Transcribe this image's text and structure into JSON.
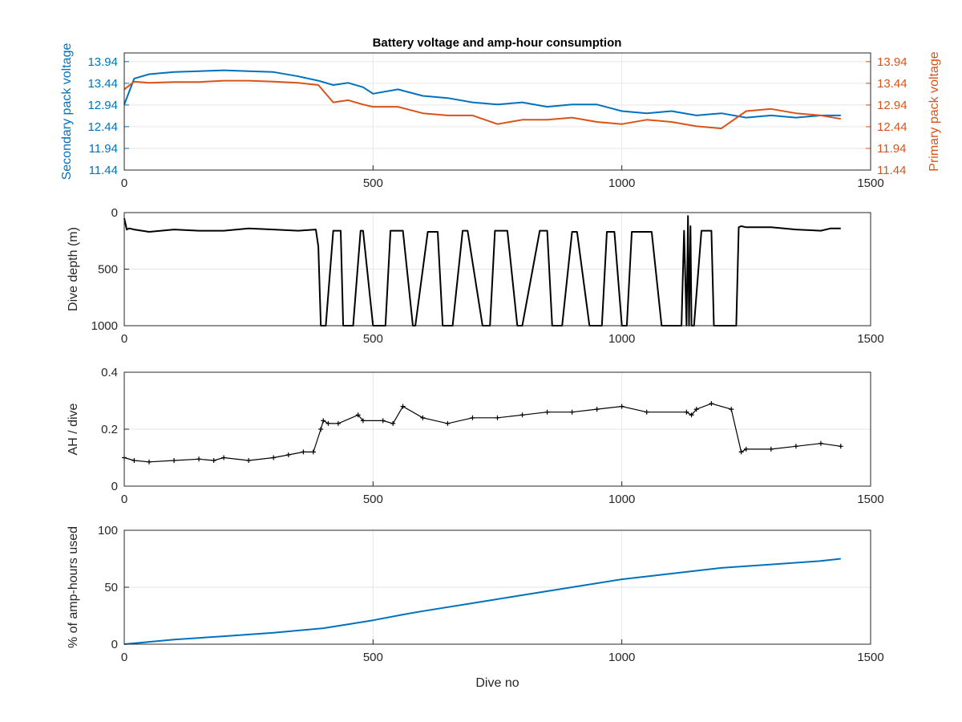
{
  "figure": {
    "title": "Battery voltage and amp-hour consumption"
  },
  "chart_data": [
    {
      "type": "line",
      "title": "Battery voltage and amp-hour consumption",
      "xlabel": "",
      "ylabel_left": "Secondary pack voltage",
      "ylabel_right": "Primary pack voltage",
      "xlim": [
        0,
        1500
      ],
      "ylim": [
        11.44,
        14.14
      ],
      "x_ticks": [
        "0",
        "500",
        "1000",
        "1500"
      ],
      "y_ticks": [
        "11.44",
        "11.94",
        "12.44",
        "12.94",
        "13.44",
        "13.94"
      ],
      "grid": true,
      "series": [
        {
          "name": "Secondary pack voltage",
          "axis": "left",
          "color": "#0072BD",
          "x": [
            0,
            20,
            50,
            100,
            150,
            200,
            250,
            300,
            350,
            390,
            420,
            450,
            480,
            500,
            550,
            600,
            650,
            700,
            750,
            800,
            850,
            900,
            950,
            1000,
            1050,
            1100,
            1150,
            1200,
            1250,
            1300,
            1350,
            1400,
            1440
          ],
          "y": [
            12.95,
            13.55,
            13.65,
            13.7,
            13.72,
            13.74,
            13.72,
            13.7,
            13.6,
            13.5,
            13.4,
            13.45,
            13.35,
            13.2,
            13.3,
            13.15,
            13.1,
            13.0,
            12.95,
            13.0,
            12.9,
            12.95,
            12.95,
            12.8,
            12.75,
            12.8,
            12.7,
            12.75,
            12.65,
            12.7,
            12.65,
            12.7,
            12.7
          ]
        },
        {
          "name": "Primary pack voltage",
          "axis": "right",
          "color": "#D95319",
          "x": [
            0,
            20,
            50,
            100,
            150,
            200,
            250,
            300,
            350,
            390,
            420,
            450,
            480,
            500,
            550,
            600,
            650,
            700,
            750,
            800,
            850,
            900,
            950,
            1000,
            1050,
            1100,
            1150,
            1200,
            1250,
            1300,
            1350,
            1400,
            1440
          ],
          "y": [
            13.3,
            13.48,
            13.45,
            13.47,
            13.47,
            13.5,
            13.5,
            13.48,
            13.45,
            13.4,
            13.0,
            13.05,
            12.95,
            12.9,
            12.9,
            12.75,
            12.7,
            12.7,
            12.5,
            12.6,
            12.6,
            12.65,
            12.55,
            12.5,
            12.6,
            12.55,
            12.45,
            12.4,
            12.8,
            12.85,
            12.75,
            12.7,
            12.62
          ]
        }
      ]
    },
    {
      "type": "line",
      "title": "",
      "xlabel": "",
      "ylabel": "Dive depth (m)",
      "xlim": [
        0,
        1500
      ],
      "ylim": [
        0,
        1000
      ],
      "y_reversed": true,
      "x_ticks": [
        "0",
        "500",
        "1000",
        "1500"
      ],
      "y_ticks": [
        "0",
        "500",
        "1000"
      ],
      "grid": true,
      "series": [
        {
          "color": "#000000",
          "x": [
            0,
            5,
            10,
            20,
            50,
            100,
            150,
            200,
            250,
            300,
            350,
            385,
            390,
            395,
            400,
            405,
            420,
            435,
            440,
            460,
            475,
            480,
            500,
            525,
            535,
            560,
            580,
            585,
            610,
            630,
            640,
            660,
            680,
            690,
            720,
            735,
            745,
            770,
            790,
            800,
            835,
            850,
            860,
            880,
            900,
            910,
            935,
            960,
            970,
            985,
            1000,
            1010,
            1020,
            1060,
            1080,
            1120,
            1125,
            1130,
            1133,
            1135,
            1138,
            1140,
            1145,
            1160,
            1180,
            1185,
            1205,
            1230,
            1235,
            1240,
            1250,
            1300,
            1350,
            1400,
            1420,
            1440
          ],
          "y": [
            50,
            150,
            140,
            150,
            170,
            150,
            160,
            160,
            140,
            150,
            160,
            150,
            300,
            1000,
            1000,
            1000,
            160,
            160,
            1000,
            1000,
            160,
            160,
            1000,
            1000,
            160,
            160,
            1000,
            1000,
            170,
            170,
            1000,
            1000,
            160,
            160,
            1000,
            1000,
            160,
            160,
            1000,
            1000,
            160,
            160,
            1000,
            1000,
            170,
            170,
            1000,
            1000,
            170,
            170,
            1000,
            1000,
            170,
            170,
            1000,
            1000,
            160,
            1000,
            30,
            1000,
            120,
            1000,
            1000,
            160,
            160,
            1000,
            1000,
            1000,
            130,
            120,
            130,
            130,
            150,
            160,
            140,
            140
          ]
        }
      ]
    },
    {
      "type": "scatter",
      "title": "",
      "xlabel": "",
      "ylabel": "AH / dive",
      "xlim": [
        0,
        1500
      ],
      "ylim": [
        0,
        0.4
      ],
      "x_ticks": [
        "0",
        "500",
        "1000",
        "1500"
      ],
      "y_ticks": [
        "0",
        "0.2",
        "0.4"
      ],
      "grid": true,
      "series": [
        {
          "color": "#000000",
          "x": [
            0,
            20,
            50,
            100,
            150,
            180,
            200,
            250,
            300,
            330,
            360,
            380,
            395,
            400,
            410,
            430,
            470,
            480,
            520,
            540,
            560,
            600,
            650,
            700,
            750,
            800,
            850,
            900,
            950,
            1000,
            1050,
            1130,
            1140,
            1150,
            1180,
            1220,
            1240,
            1250,
            1300,
            1350,
            1400,
            1440
          ],
          "y": [
            0.1,
            0.09,
            0.085,
            0.09,
            0.095,
            0.09,
            0.1,
            0.09,
            0.1,
            0.11,
            0.12,
            0.12,
            0.2,
            0.23,
            0.22,
            0.22,
            0.25,
            0.23,
            0.23,
            0.22,
            0.28,
            0.24,
            0.22,
            0.24,
            0.24,
            0.25,
            0.26,
            0.26,
            0.27,
            0.28,
            0.26,
            0.26,
            0.25,
            0.27,
            0.29,
            0.27,
            0.12,
            0.13,
            0.13,
            0.14,
            0.15,
            0.14
          ]
        }
      ]
    },
    {
      "type": "line",
      "title": "",
      "xlabel": "Dive no",
      "ylabel": "% of amp-hours used",
      "xlim": [
        0,
        1500
      ],
      "ylim": [
        0,
        100
      ],
      "x_ticks": [
        "0",
        "500",
        "1000",
        "1500"
      ],
      "y_ticks": [
        "0",
        "50",
        "100"
      ],
      "grid": true,
      "series": [
        {
          "color": "#0072BD",
          "x": [
            0,
            100,
            200,
            300,
            400,
            500,
            560,
            600,
            700,
            800,
            900,
            1000,
            1100,
            1200,
            1300,
            1400,
            1440
          ],
          "y": [
            0,
            4,
            7,
            10,
            14,
            21,
            26,
            29,
            36,
            43,
            50,
            57,
            62,
            67,
            70,
            73,
            75
          ]
        }
      ]
    }
  ]
}
